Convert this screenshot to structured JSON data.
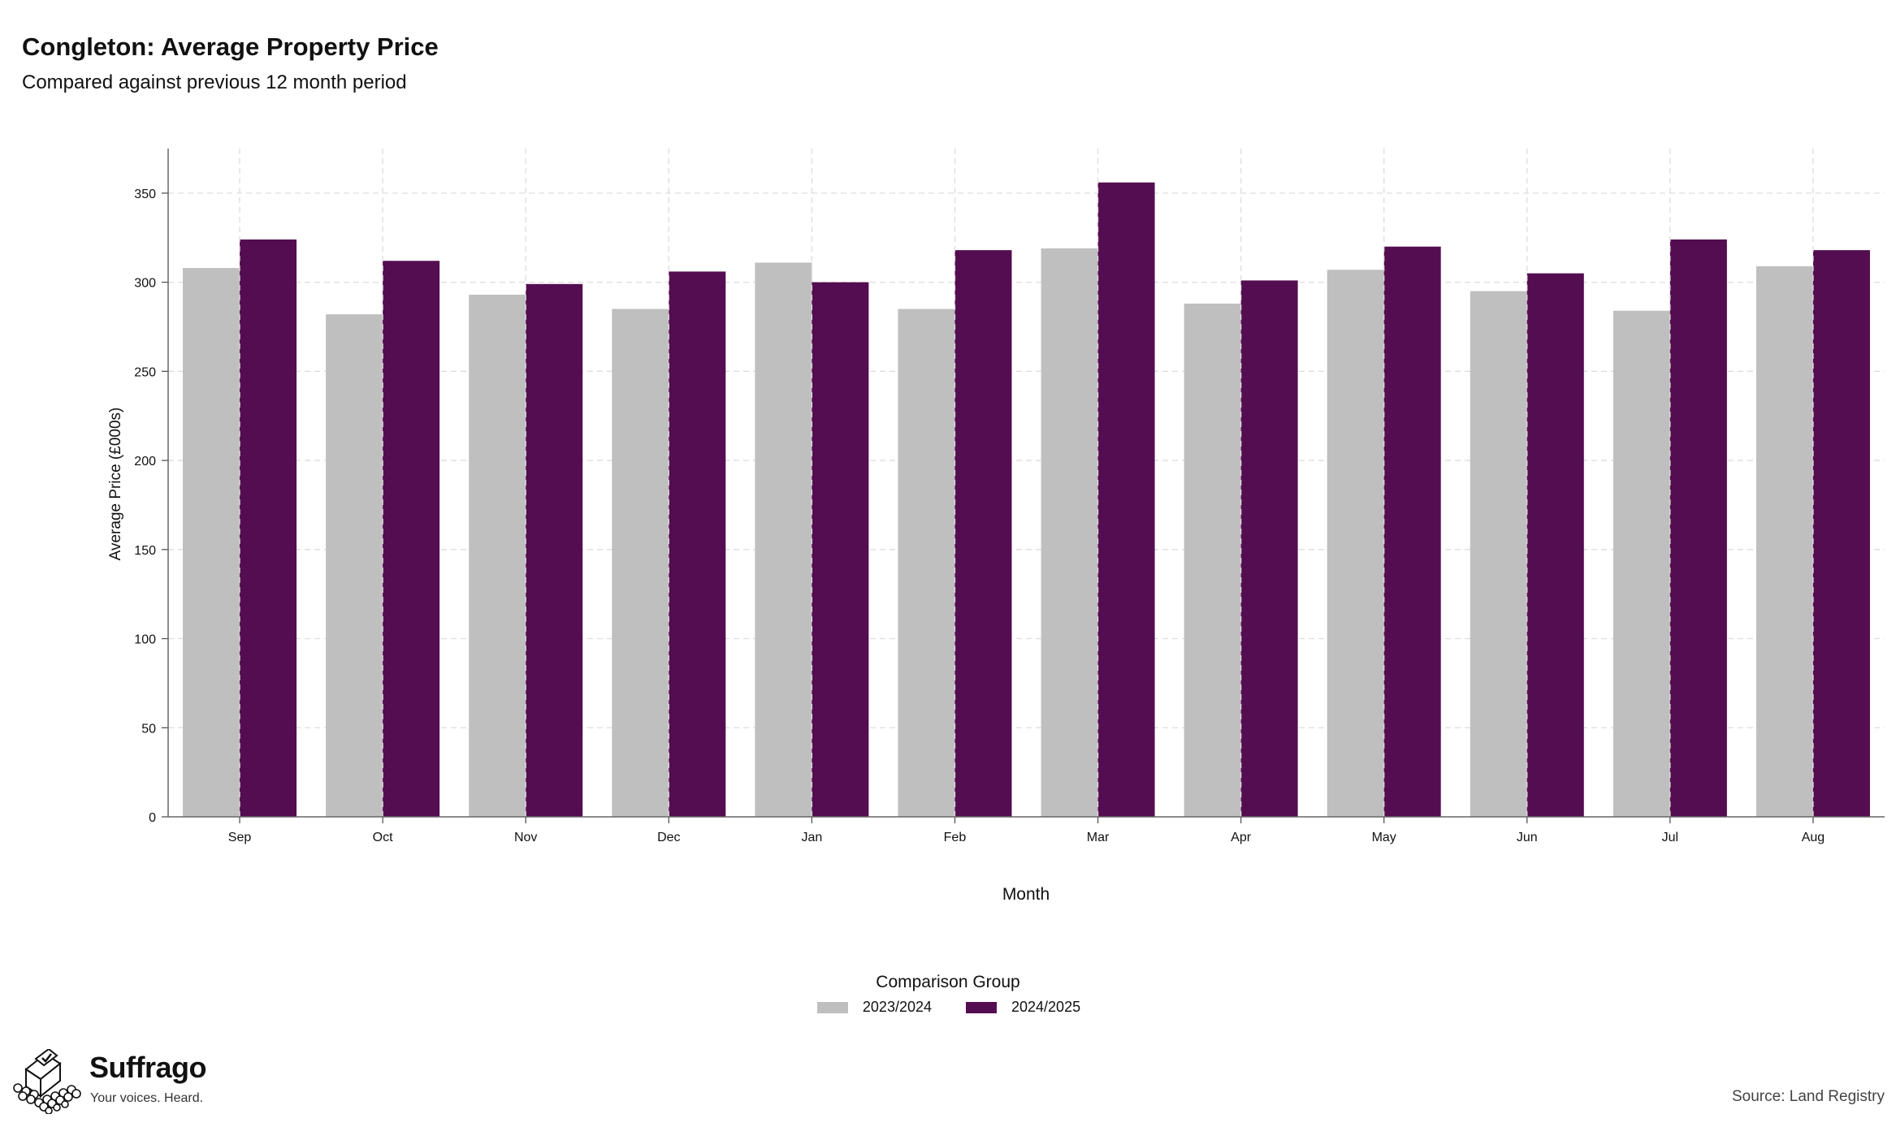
{
  "chart_data": {
    "type": "bar",
    "title": "Congleton: Average Property Price",
    "subtitle": "Compared against previous 12 month period",
    "xlabel": "Month",
    "ylabel": "Average Price (£000s)",
    "categories": [
      "Sep",
      "Oct",
      "Nov",
      "Dec",
      "Jan",
      "Feb",
      "Mar",
      "Apr",
      "May",
      "Jun",
      "Jul",
      "Aug"
    ],
    "series": [
      {
        "name": "2023/2024",
        "color": "#bfbfbf",
        "values": [
          308,
          282,
          293,
          285,
          311,
          285,
          319,
          288,
          307,
          295,
          284,
          309
        ]
      },
      {
        "name": "2024/2025",
        "color": "#540d50",
        "values": [
          324,
          312,
          299,
          306,
          300,
          318,
          356,
          301,
          320,
          305,
          324,
          318
        ]
      }
    ],
    "ylim": [
      0,
      375
    ],
    "yticks": [
      0,
      50,
      100,
      150,
      200,
      250,
      300,
      350
    ],
    "grid": true,
    "legend_title": "Comparison Group",
    "legend_position": "bottom"
  },
  "branding": {
    "name": "Suffrago",
    "tagline": "Your voices. Heard.",
    "icon": "ballot-box-icon"
  },
  "source": "Source: Land Registry"
}
